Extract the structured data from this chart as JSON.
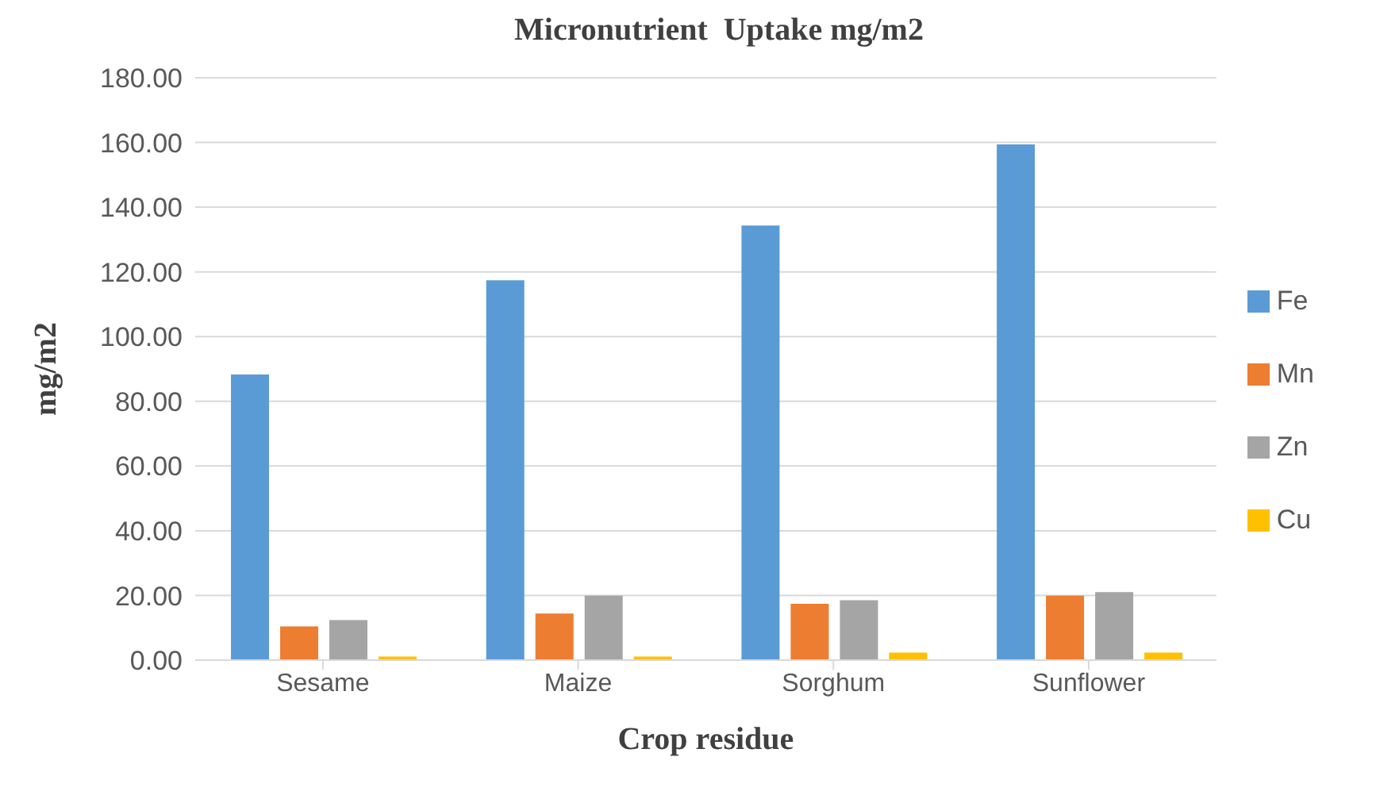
{
  "chart_data": {
    "type": "bar",
    "title": "Micronutrient  Uptake mg/m2",
    "xlabel": "Crop residue",
    "ylabel": "mg/m2",
    "categories": [
      "Sesame",
      "Maize",
      "Sorghum",
      "Sunflower"
    ],
    "series": [
      {
        "name": "Fe",
        "color": "#5b9bd5",
        "values": [
          88.3,
          117.4,
          134.3,
          159.4
        ]
      },
      {
        "name": "Mn",
        "color": "#ed7d31",
        "values": [
          10.4,
          14.4,
          17.4,
          19.9
        ]
      },
      {
        "name": "Zn",
        "color": "#a5a5a5",
        "values": [
          12.4,
          19.9,
          18.5,
          21.0
        ]
      },
      {
        "name": "Cu",
        "color": "#ffc000",
        "values": [
          1.1,
          1.1,
          2.3,
          2.3
        ]
      }
    ],
    "ylim": [
      0,
      180
    ],
    "yticks": [
      {
        "value": 0,
        "label": "0.00"
      },
      {
        "value": 20,
        "label": "20.00"
      },
      {
        "value": 40,
        "label": "40.00"
      },
      {
        "value": 60,
        "label": "60.00"
      },
      {
        "value": 80,
        "label": "80.00"
      },
      {
        "value": 100,
        "label": "100.00"
      },
      {
        "value": 120,
        "label": "120.00"
      },
      {
        "value": 140,
        "label": "140.00"
      },
      {
        "value": 160,
        "label": "160.00"
      },
      {
        "value": 180,
        "label": "180.00"
      }
    ],
    "grid": "y",
    "legend": "right"
  }
}
